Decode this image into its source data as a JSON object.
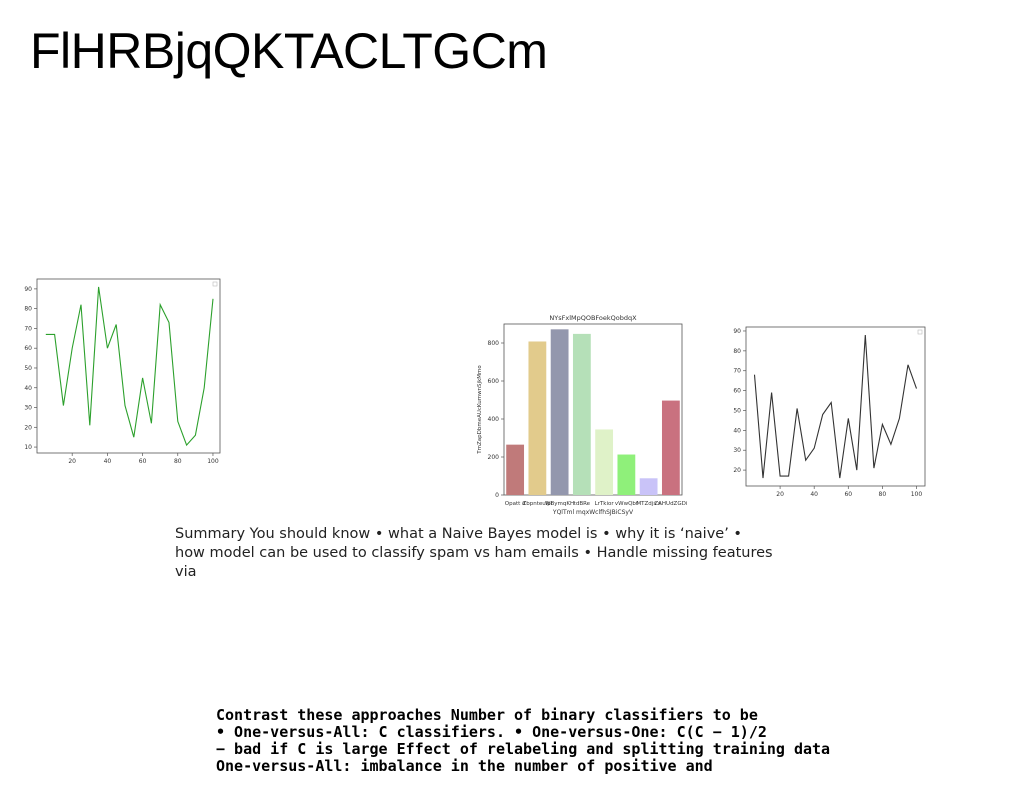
{
  "slide": {
    "title": "FlHRBjqQKTACLTGCm",
    "summary": "Summary You should know • what a Naive Bayes model is • why it is ‘naive’ • how model can be used to classify spam vs ham emails • Handle missing features via",
    "contrast_lines": [
      "Contrast these approaches Number of binary classifiers to be",
      "• One-versus-All: C classifiers. • One-versus-One: C(C − 1)/2",
      "− bad if C is large Effect of relabeling and splitting training data",
      "One-versus-All: imbalance in the number of positive and"
    ]
  },
  "chart_data": [
    {
      "type": "line",
      "title": "",
      "xlabel": "",
      "ylabel": "",
      "color": "#2ca02c",
      "x": [
        5,
        10,
        15,
        20,
        25,
        30,
        35,
        40,
        45,
        50,
        55,
        60,
        65,
        70,
        75,
        80,
        85,
        90,
        95,
        100
      ],
      "y": [
        67,
        67,
        31,
        60,
        82,
        21,
        91,
        60,
        72,
        31,
        15,
        45,
        22,
        82,
        73,
        23,
        11,
        16,
        40,
        85
      ],
      "xticks": [
        20,
        40,
        60,
        80,
        100
      ],
      "yticks": [
        10,
        20,
        30,
        40,
        50,
        60,
        70,
        80,
        90
      ],
      "xlim": [
        0,
        104
      ],
      "ylim": [
        7,
        95
      ],
      "grid": false
    },
    {
      "type": "bar",
      "title": "NYsFxlMpQOBFoekQobdqX",
      "xlabel": "YQlTml mqxWclfhSJBiCSyV",
      "ylabel": "TmZapDbmeAUcKumwnSjkMmo",
      "categories": [
        "Opatt d",
        "Zbpnteulpi",
        "WBymqKH",
        "tdBRe",
        "LrTkior",
        "vWwQbf",
        "MTZdjs s",
        "ZAHUdZGDi"
      ],
      "values": [
        265,
        808,
        872,
        848,
        345,
        213,
        88,
        497
      ],
      "colors": [
        "#c07a7a",
        "#e2cb8c",
        "#9397ad",
        "#b5e0b8",
        "#dff2c8",
        "#8ff07a",
        "#c9c3f8",
        "#c9717f"
      ],
      "yticks": [
        0,
        200,
        400,
        600,
        800
      ],
      "ylim": [
        0,
        900
      ],
      "grid": false
    },
    {
      "type": "line",
      "title": "",
      "xlabel": "",
      "ylabel": "",
      "color": "#333333",
      "x": [
        5,
        10,
        15,
        20,
        25,
        30,
        35,
        40,
        45,
        50,
        55,
        60,
        65,
        70,
        75,
        80,
        85,
        90,
        95,
        100
      ],
      "y": [
        68,
        16,
        59,
        17,
        17,
        51,
        25,
        31,
        48,
        54,
        16,
        46,
        20,
        88,
        21,
        43,
        33,
        46,
        73,
        61
      ],
      "xticks": [
        20,
        40,
        60,
        80,
        100
      ],
      "yticks": [
        20,
        30,
        40,
        50,
        60,
        70,
        80,
        90
      ],
      "xlim": [
        0,
        105
      ],
      "ylim": [
        12,
        92
      ],
      "grid": false
    }
  ]
}
